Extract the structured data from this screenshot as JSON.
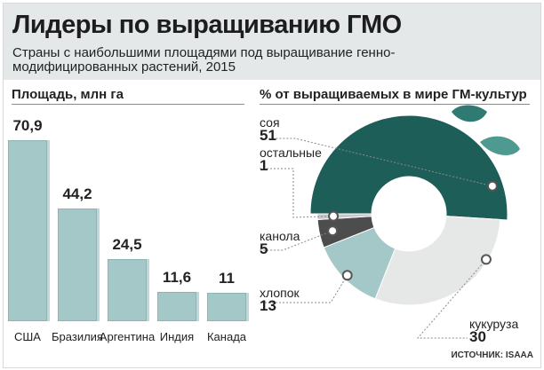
{
  "header": {
    "title": "Лидеры по выращиванию ГМО",
    "subtitle": "Страны с наибольшими площадями под выращивание генно-модифицированных растений, 2015"
  },
  "chart_data": [
    {
      "type": "bar",
      "title": "Площадь, млн га",
      "categories": [
        "США",
        "Бразилия",
        "Аргентина",
        "Индия",
        "Канада"
      ],
      "values": [
        70.9,
        44.2,
        24.5,
        11.6,
        11
      ],
      "value_labels": [
        "70,9",
        "44,2",
        "24,5",
        "11,6",
        "11"
      ],
      "ylim": [
        0,
        70.9
      ],
      "grid": false,
      "color": "#a4c8c8"
    },
    {
      "type": "pie",
      "title": "% от выращиваемых в мире ГМ-культур",
      "slices": [
        {
          "label": "соя",
          "value": 51,
          "value_label": "51",
          "color": "#1e5e59"
        },
        {
          "label": "кукуруза",
          "value": 30,
          "value_label": "30",
          "color": "#e6e8e8"
        },
        {
          "label": "хлопок",
          "value": 13,
          "value_label": "13",
          "color": "#a4c8c8"
        },
        {
          "label": "канола",
          "value": 5,
          "value_label": "5",
          "color": "#4d4d4d"
        },
        {
          "label": "остальные",
          "value": 1,
          "value_label": "1",
          "color": "#c8c8c8"
        }
      ],
      "legend": "none"
    }
  ],
  "source": "ИСТОЧНИК: ISAAA"
}
